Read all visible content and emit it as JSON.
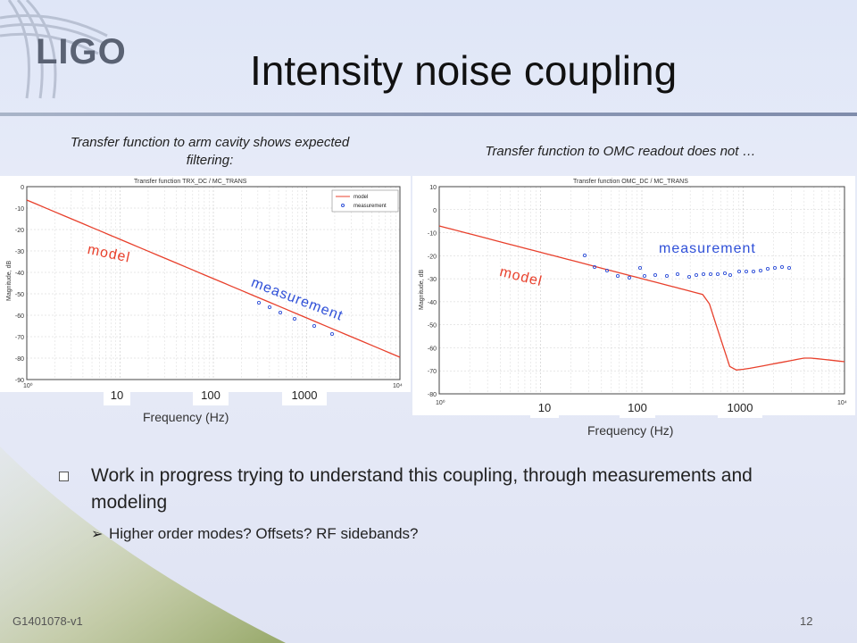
{
  "logo_text": "LIGO",
  "title": "Intensity noise coupling",
  "left_panel": {
    "caption": "Transfer function to arm cavity shows expected filtering:",
    "plot_title": "Transfer function TRX_DC / MC_TRANS",
    "ylabel": "Magnitude, dB",
    "legend_model": "model",
    "legend_measurement": "measurement",
    "yticks": [
      "0",
      "-10",
      "-20",
      "-30",
      "-40",
      "-50",
      "-60",
      "-70",
      "-80",
      "-90"
    ],
    "xticks": [
      "10⁰",
      "10⁴"
    ],
    "freq_chips": [
      "10",
      "100",
      "1000"
    ],
    "xlabel": "Frequency (Hz)",
    "model_label": "model",
    "measurement_label": "measurement"
  },
  "right_panel": {
    "caption": "Transfer function to OMC readout does not …",
    "plot_title": "Transfer function OMC_DC / MC_TRANS",
    "ylabel": "Magnitude, dB",
    "yticks": [
      "10",
      "0",
      "-10",
      "-20",
      "-30",
      "-40",
      "-50",
      "-60",
      "-70",
      "-80"
    ],
    "xticks": [
      "10⁰",
      "10⁴"
    ],
    "freq_chips": [
      "10",
      "100",
      "1000"
    ],
    "xlabel": "Frequency (Hz)",
    "model_label": "model",
    "measurement_label": "measurement"
  },
  "bullets": {
    "main": "Work in progress trying to understand this coupling, through measurements and modeling",
    "sub": "Higher order modes? Offsets? RF sidebands?"
  },
  "footer": {
    "doc_id": "G1401078-v1",
    "page_number": "12"
  },
  "colors": {
    "model": "#e8402c",
    "measurement": "#2f50d8",
    "grid": "#cfcfcf"
  }
}
